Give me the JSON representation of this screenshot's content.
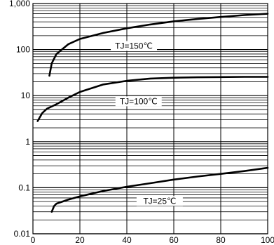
{
  "chart_data": {
    "type": "line",
    "title": "",
    "xlabel": "",
    "ylabel": "",
    "xlim": [
      0,
      100
    ],
    "ylim": [
      0.01,
      1000
    ],
    "yscale": "log",
    "grid": true,
    "legend": "none",
    "x_ticks": [
      0,
      20,
      40,
      60,
      80,
      100
    ],
    "x_tick_labels": [
      "0",
      "20",
      "40",
      "60",
      "80",
      "100"
    ],
    "y_ticks": [
      0.01,
      0.1,
      1,
      10,
      100,
      1000
    ],
    "y_tick_labels": [
      "0.01",
      "0.1",
      "1",
      "10",
      "100",
      "1,000"
    ],
    "series": [
      {
        "annotation": "TJ=150℃",
        "label_at": [
          43,
          120
        ],
        "points": [
          [
            7,
            27
          ],
          [
            8,
            50
          ],
          [
            10,
            80
          ],
          [
            15,
            130
          ],
          [
            20,
            170
          ],
          [
            30,
            230
          ],
          [
            40,
            290
          ],
          [
            50,
            350
          ],
          [
            60,
            410
          ],
          [
            70,
            460
          ],
          [
            80,
            510
          ],
          [
            90,
            560
          ],
          [
            100,
            600
          ]
        ]
      },
      {
        "annotation": "TJ=100℃",
        "label_at": [
          45,
          7.5
        ],
        "points": [
          [
            2,
            2.8
          ],
          [
            4,
            4.2
          ],
          [
            6,
            5.2
          ],
          [
            10,
            6.5
          ],
          [
            15,
            9
          ],
          [
            20,
            12
          ],
          [
            25,
            14.5
          ],
          [
            30,
            17.5
          ],
          [
            40,
            21
          ],
          [
            50,
            23.5
          ],
          [
            60,
            24.5
          ],
          [
            70,
            25
          ],
          [
            80,
            25.3
          ],
          [
            90,
            25.5
          ],
          [
            100,
            25.5
          ]
        ]
      },
      {
        "annotation": "TJ=25℃",
        "label_at": [
          54,
          0.0515
        ],
        "points": [
          [
            8,
            0.03
          ],
          [
            9,
            0.04
          ],
          [
            10,
            0.045
          ],
          [
            15,
            0.055
          ],
          [
            20,
            0.065
          ],
          [
            30,
            0.085
          ],
          [
            40,
            0.105
          ],
          [
            50,
            0.125
          ],
          [
            60,
            0.15
          ],
          [
            70,
            0.175
          ],
          [
            80,
            0.2
          ],
          [
            90,
            0.23
          ],
          [
            100,
            0.27
          ]
        ]
      }
    ],
    "colors": {
      "line": "#000000",
      "grid": "#000000",
      "background": "#ffffff"
    }
  }
}
